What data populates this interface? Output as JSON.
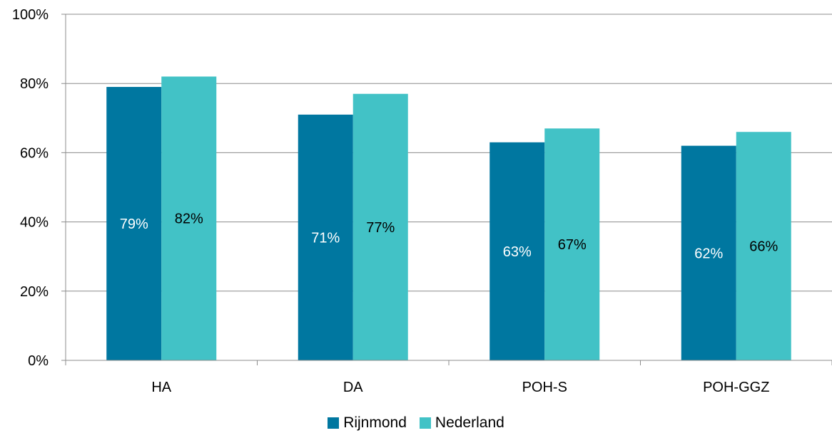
{
  "chart_data": {
    "type": "bar",
    "categories": [
      "HA",
      "DA",
      "POH-S",
      "POH-GGZ"
    ],
    "series": [
      {
        "name": "Rijnmond",
        "values": [
          79,
          71,
          63,
          62
        ],
        "labels": [
          "79%",
          "71%",
          "63%",
          "62%"
        ],
        "color": "#0077a0",
        "label_color": "#ffffff"
      },
      {
        "name": "Nederland",
        "values": [
          82,
          77,
          67,
          66
        ],
        "labels": [
          "82%",
          "77%",
          "67%",
          "66%"
        ],
        "color": "#42c2c6",
        "label_color": "#000000"
      }
    ],
    "yticks": [
      "0%",
      "20%",
      "40%",
      "60%",
      "80%",
      "100%"
    ],
    "ylim": [
      0,
      100
    ],
    "grid": true,
    "legend_position": "bottom"
  }
}
